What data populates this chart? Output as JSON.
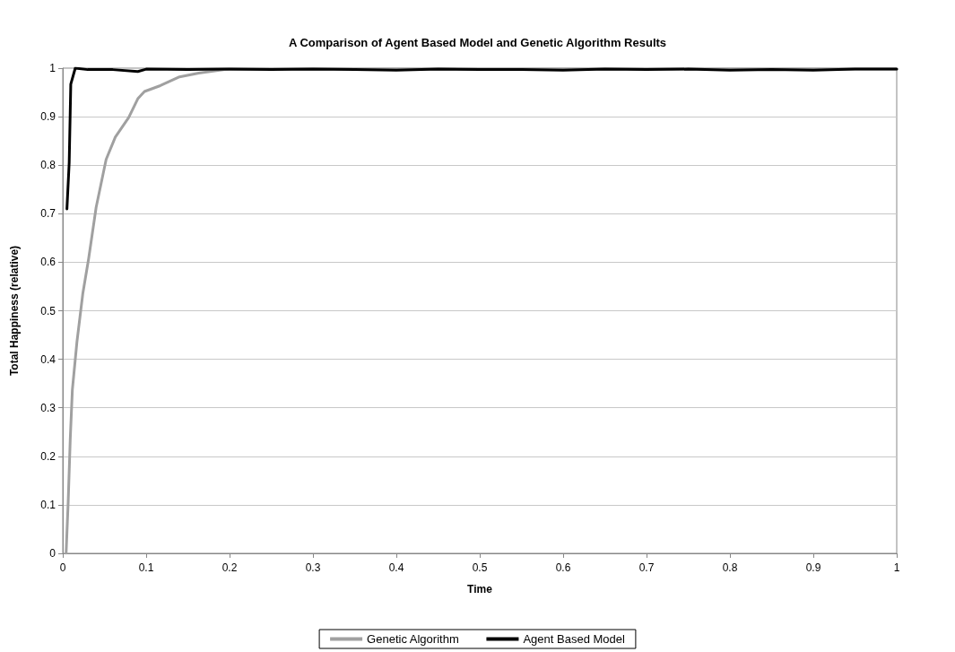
{
  "chart_data": {
    "type": "line",
    "title": "A Comparison of Agent Based Model and Genetic Algorithm Results",
    "xlabel": "Time",
    "ylabel": "Total Happiness (relative)",
    "xlim": [
      0,
      1
    ],
    "xticks": [
      0,
      0.1,
      0.2,
      0.3,
      0.4,
      0.5,
      0.6,
      0.7,
      0.8,
      0.9,
      1
    ],
    "ylim": [
      0,
      1
    ],
    "yticks": [
      0,
      0.1,
      0.2,
      0.3,
      0.4,
      0.5,
      0.6,
      0.7,
      0.8,
      0.9,
      1
    ],
    "grid": "y",
    "legend": "bottom",
    "marker": "none",
    "line_style": "solid",
    "series": [
      {
        "name": "Genetic Algorithm",
        "color": "#a0a0a0",
        "x": [
          0.004,
          0.0065,
          0.009,
          0.0115,
          0.017,
          0.024,
          0.031,
          0.04,
          0.052,
          0.063,
          0.079,
          0.09,
          0.098,
          0.117,
          0.14,
          0.163,
          0.194,
          0.25,
          0.4,
          0.6,
          0.8,
          1
        ],
        "values": [
          0,
          0.106,
          0.237,
          0.337,
          0.436,
          0.535,
          0.607,
          0.713,
          0.812,
          0.858,
          0.898,
          0.937,
          0.952,
          0.964,
          0.982,
          0.99,
          0.997,
          0.998,
          0.998,
          0.998,
          0.998,
          0.998
        ]
      },
      {
        "name": "Agent Based Model",
        "color": "#000000",
        "x": [
          0.005,
          0.0077,
          0.0096,
          0.015,
          0.03,
          0.06,
          0.09,
          0.1,
          0.15,
          0.2,
          0.25,
          0.3,
          0.35,
          0.4,
          0.45,
          0.5,
          0.55,
          0.6,
          0.65,
          0.7,
          0.75,
          0.8,
          0.85,
          0.9,
          0.95,
          1
        ],
        "values": [
          0.71,
          0.805,
          0.967,
          1,
          0.997,
          0.997,
          0.993,
          0.998,
          0.997,
          0.998,
          0.997,
          0.998,
          0.997,
          0.996,
          0.998,
          0.997,
          0.997,
          0.996,
          0.998,
          0.997,
          0.998,
          0.996,
          0.997,
          0.996,
          0.998,
          0.998
        ]
      }
    ]
  }
}
